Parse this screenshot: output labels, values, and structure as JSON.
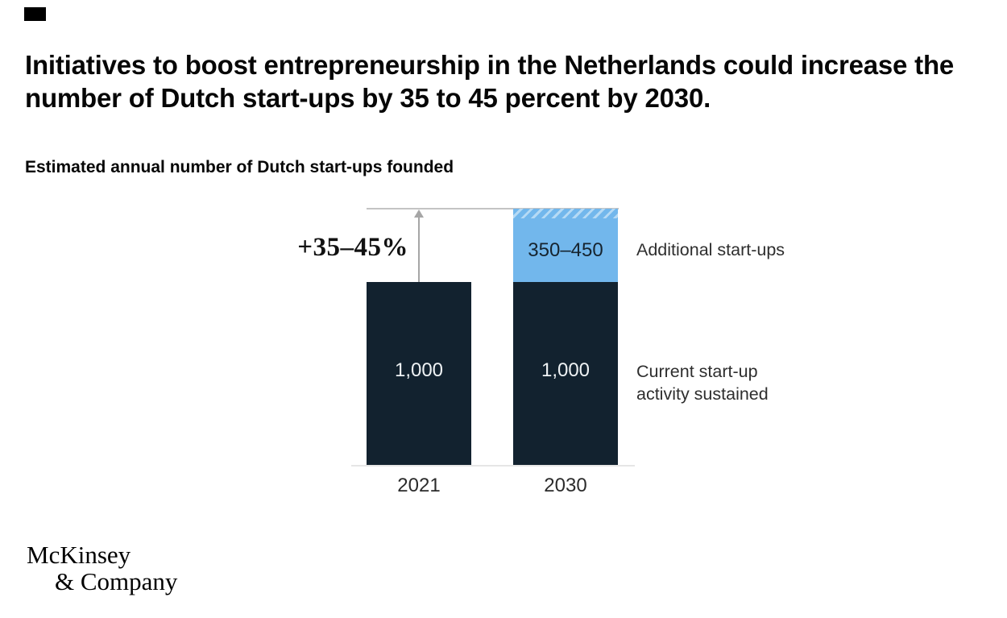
{
  "page": {
    "title": "Initiatives to boost entrepreneurship in the Netherlands could increase the number of Dutch start-ups by 35 to 45 percent by 2030.",
    "subtitle": "Estimated annual number of Dutch start-ups founded"
  },
  "chart": {
    "growth_label": "+35–45%",
    "bars": [
      {
        "x_label": "2021",
        "value_label": "1,000"
      },
      {
        "x_label": "2030",
        "value_label": "1,000",
        "additional_label": "350–450"
      }
    ],
    "legend_additional": "Additional start-ups",
    "legend_current_line1": "Current start-up",
    "legend_current_line2": "activity sustained"
  },
  "chart_data": {
    "type": "bar",
    "stacked": true,
    "title": "Estimated annual number of Dutch start-ups founded",
    "categories": [
      "2021",
      "2030"
    ],
    "series": [
      {
        "name": "Current start-up activity sustained",
        "values": [
          1000,
          1000
        ],
        "data_labels": [
          "1,000",
          "1,000"
        ],
        "color": "#12222f"
      },
      {
        "name": "Additional start-ups",
        "values": [
          0,
          400
        ],
        "value_range": [
          350,
          450
        ],
        "data_labels": [
          "",
          "350–450"
        ],
        "color": "#72b7ec",
        "style_note": "hatched band at top of 2030 segment indicates 350–450 range"
      }
    ],
    "annotations": [
      {
        "text": "+35–45%",
        "meaning": "increase from 2021 to 2030, shown with upward arrow to dashed target line"
      }
    ],
    "xlabel": "",
    "ylabel": "",
    "legend_position": "right",
    "gridlines": false
  },
  "brand": {
    "line1": "McKinsey",
    "line2": "& Company"
  },
  "colors": {
    "bar_dark_navy": "#12222f",
    "bar_light_blue": "#72b7ec",
    "hatch_stripe": "#b5daf5",
    "arrow_gray": "#a6a6a6",
    "axis_line_gray": "#e6e6e6",
    "top_line_gray": "#c4c4c4",
    "text_black": "#060606",
    "bar_text_light": "#eef2f4"
  }
}
